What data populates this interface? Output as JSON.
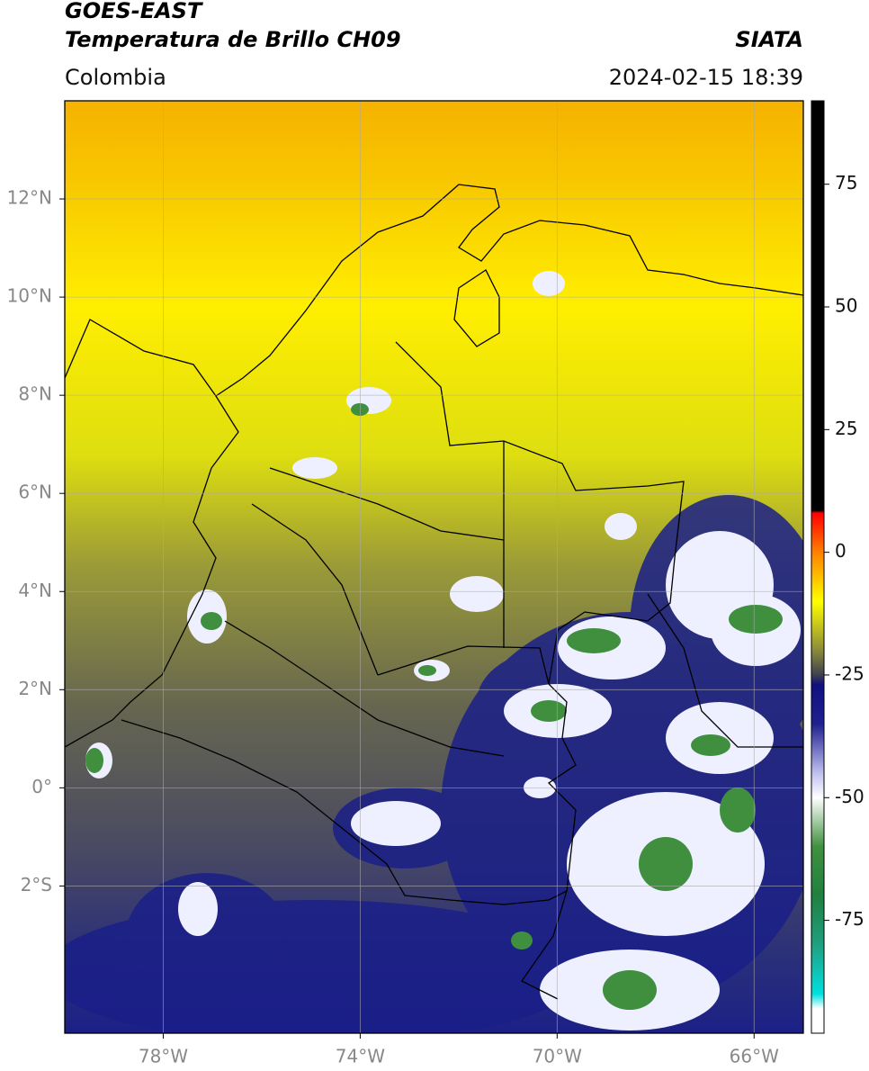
{
  "header": {
    "title": "GOES-EAST",
    "subtitle": "Temperatura de Brillo CH09",
    "source": "SIATA",
    "region": "Colombia",
    "datetime": "2024-02-15 18:39"
  },
  "chart_data": {
    "type": "map",
    "xlim": [
      -80,
      -65
    ],
    "ylim": [
      -5,
      14
    ],
    "xticks": [
      {
        "value": -78,
        "label": "78°W"
      },
      {
        "value": -74,
        "label": "74°W"
      },
      {
        "value": -70,
        "label": "70°W"
      },
      {
        "value": -66,
        "label": "66°W"
      }
    ],
    "yticks": [
      {
        "value": 12,
        "label": "12°N"
      },
      {
        "value": 10,
        "label": "10°N"
      },
      {
        "value": 8,
        "label": "8°N"
      },
      {
        "value": 6,
        "label": "6°N"
      },
      {
        "value": 4,
        "label": "4°N"
      },
      {
        "value": 2,
        "label": "2°N"
      },
      {
        "value": 0,
        "label": "0°"
      },
      {
        "value": -2,
        "label": "2°S"
      }
    ],
    "grid": true,
    "colorbar": {
      "lim": [
        -98,
        92
      ],
      "ticks": [
        75,
        50,
        25,
        0,
        -25,
        -50,
        -75
      ],
      "colormap": [
        {
          "value": 92,
          "color": "#000000"
        },
        {
          "value": 8.5,
          "color": "#000000"
        },
        {
          "value": 8,
          "color": "#ff0000"
        },
        {
          "value": 0,
          "color": "#ff8000"
        },
        {
          "value": -10,
          "color": "#ffff00"
        },
        {
          "value": -20,
          "color": "#8a8a3a"
        },
        {
          "value": -25,
          "color": "#404050"
        },
        {
          "value": -27,
          "color": "#101080"
        },
        {
          "value": -35,
          "color": "#202090"
        },
        {
          "value": -45,
          "color": "#c0c0f0"
        },
        {
          "value": -50,
          "color": "#ffffff"
        },
        {
          "value": -60,
          "color": "#409040"
        },
        {
          "value": -70,
          "color": "#208040"
        },
        {
          "value": -80,
          "color": "#20a080"
        },
        {
          "value": -90,
          "color": "#00e0e0"
        },
        {
          "value": -93,
          "color": "#ffffff"
        },
        {
          "value": -98,
          "color": "#ffffff"
        }
      ]
    }
  }
}
